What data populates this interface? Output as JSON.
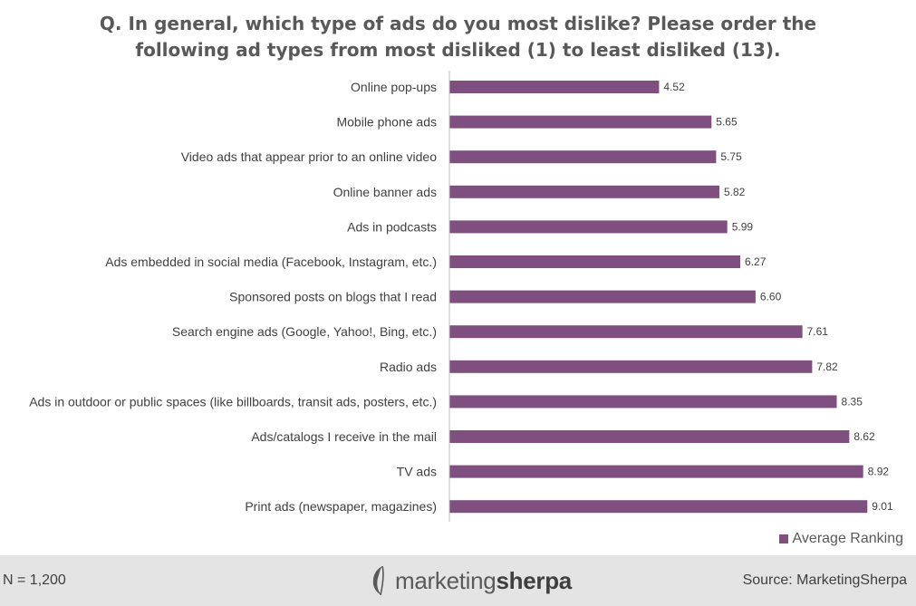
{
  "title_lines": [
    "Q. In general, which type of ads do you most dislike? Please order the",
    "following ad types from most disliked (1) to least disliked (13)."
  ],
  "colors": {
    "bar": "#7f4f7f",
    "axis": "#bfbfbf",
    "footer_bg": "#e4e4e4"
  },
  "chart_data": {
    "type": "bar",
    "orientation": "horizontal",
    "categories": [
      "Online pop-ups",
      "Mobile phone ads",
      "Video ads that appear prior to an online video",
      "Online banner ads",
      "Ads in podcasts",
      "Ads embedded in social media (Facebook, Instagram, etc.)",
      "Sponsored posts on blogs that I read",
      "Search engine ads (Google, Yahoo!, Bing, etc.)",
      "Radio ads",
      "Ads in outdoor or public spaces (like billboards, transit ads, posters, etc.)",
      "Ads/catalogs I receive in the mail",
      "TV ads",
      "Print ads (newspaper, magazines)"
    ],
    "series": [
      {
        "name": "Average Ranking",
        "values": [
          4.52,
          5.65,
          5.75,
          5.82,
          5.99,
          6.27,
          6.6,
          7.61,
          7.82,
          8.35,
          8.62,
          8.92,
          9.01
        ],
        "labels": [
          "4.52",
          "5.65",
          "5.75",
          "5.82",
          "5.99",
          "6.27",
          "6.60",
          "7.61",
          "7.82",
          "8.35",
          "8.62",
          "8.92",
          "9.01"
        ]
      }
    ],
    "xlim": [
      0,
      9.5
    ],
    "legend": "bottom-right",
    "grid": false
  },
  "legend": {
    "label": "Average Ranking"
  },
  "footer": {
    "sample_size": "N = 1,200",
    "logo_regular": "marketing",
    "logo_bold": "sherpa",
    "source": "Source: MarketingSherpa"
  }
}
